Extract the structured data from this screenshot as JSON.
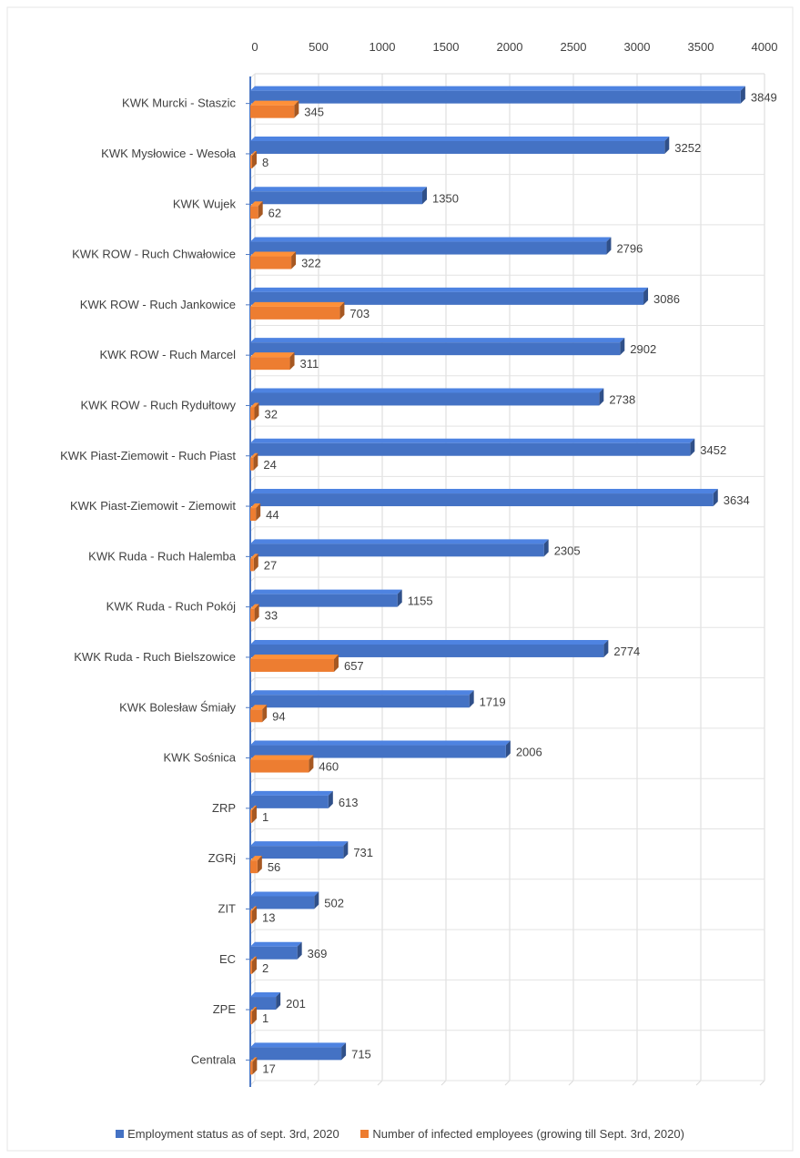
{
  "chart_data": {
    "type": "bar",
    "orientation": "horizontal",
    "categories": [
      "KWK Murcki - Staszic",
      "KWK Mysłowice - Wesoła",
      "KWK Wujek",
      "KWK ROW - Ruch Chwałowice",
      "KWK ROW - Ruch  Jankowice",
      "KWK ROW - Ruch  Marcel",
      "KWK ROW - Ruch  Rydułtowy",
      "KWK Piast-Ziemowit - Ruch Piast",
      "KWK Piast-Ziemowit - Ziemowit",
      "KWK Ruda - Ruch Halemba",
      "KWK Ruda - Ruch Pokój",
      "KWK Ruda - Ruch Bielszowice",
      "KWK Bolesław Śmiały",
      "KWK Sośnica",
      "ZRP",
      "ZGRj",
      "ZIT",
      "EC",
      "ZPE",
      "Centrala"
    ],
    "series": [
      {
        "name": "Employment status as of sept. 3rd, 2020",
        "color": "#4472c4",
        "values": [
          3849,
          3252,
          1350,
          2796,
          3086,
          2902,
          2738,
          3452,
          3634,
          2305,
          1155,
          2774,
          1719,
          2006,
          613,
          731,
          502,
          369,
          201,
          715
        ]
      },
      {
        "name": "Number of infected employees (growing till Sept. 3rd, 2020)",
        "color": "#ed7d31",
        "values": [
          345,
          8,
          62,
          322,
          703,
          311,
          32,
          24,
          44,
          27,
          33,
          657,
          94,
          460,
          1,
          56,
          13,
          2,
          1,
          17
        ]
      }
    ],
    "xlim": [
      0,
      4000
    ],
    "x_ticks": [
      "0",
      "500",
      "1000",
      "1500",
      "2000",
      "2500",
      "3000",
      "3500",
      "4000"
    ],
    "x_axis_position": "top",
    "grid": true,
    "legend_position": "bottom",
    "title": "",
    "xlabel": "",
    "ylabel": ""
  }
}
